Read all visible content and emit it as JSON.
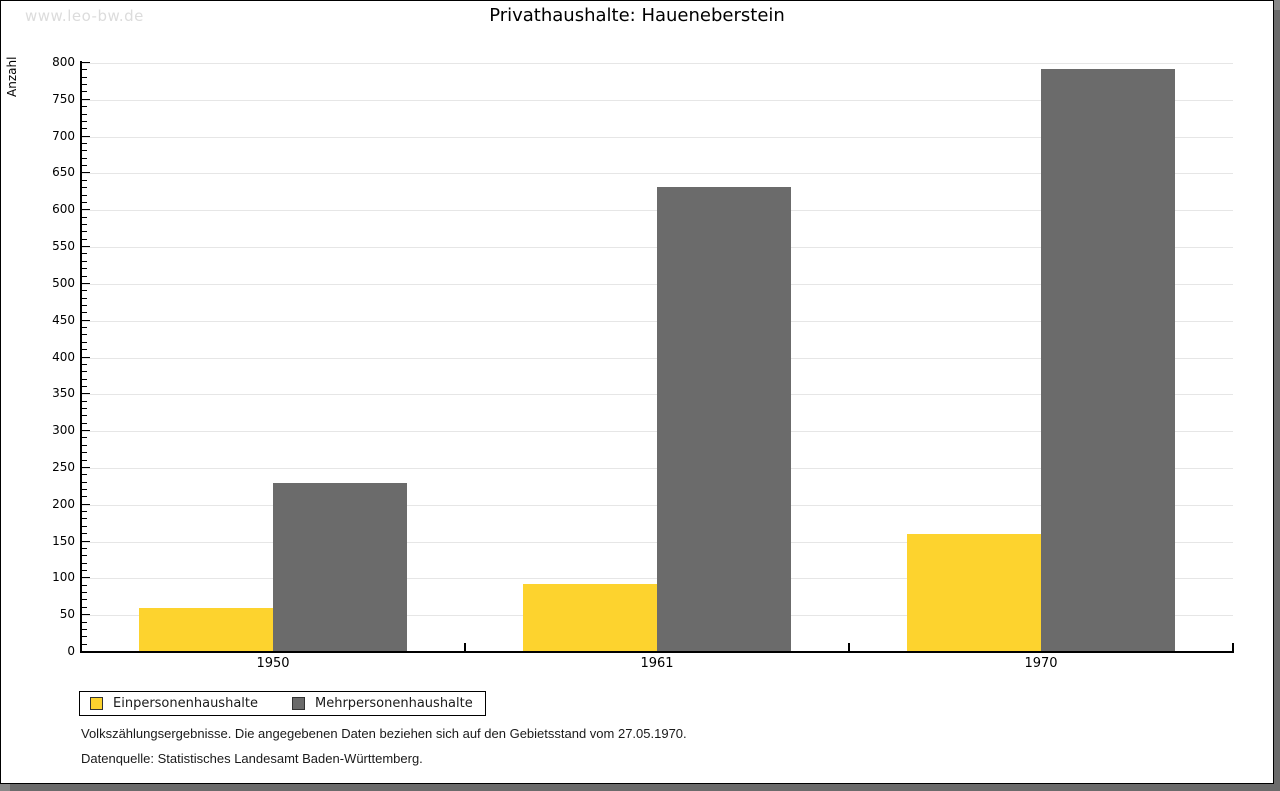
{
  "page": {
    "watermark": "www.leo-bw.de",
    "footnotes": [
      "Volkszählungsergebnisse. Die angegebenen Daten beziehen sich auf den Gebietsstand vom 27.05.1970.",
      "Datenquelle: Statistisches Landesamt Baden-Württemberg."
    ]
  },
  "chart_data": {
    "type": "bar",
    "title": "Privathaushalte: Haueneberstein",
    "ylabel": "Anzahl",
    "xlabel": "",
    "categories": [
      "1950",
      "1961",
      "1970"
    ],
    "series": [
      {
        "name": "Einpersonenhaushalte",
        "color": "#fdd32e",
        "values": [
          60,
          92,
          160
        ]
      },
      {
        "name": "Mehrpersonenhaushalte",
        "color": "#6b6b6b",
        "values": [
          229,
          632,
          792
        ]
      }
    ],
    "ylim": [
      0,
      800
    ],
    "y_tick_step": 50,
    "y_minor_tick_step": 10,
    "grid": true,
    "legend_position": "bottom-left",
    "colors": {
      "gridline": "#e6e6e6",
      "axis": "#000000"
    }
  }
}
